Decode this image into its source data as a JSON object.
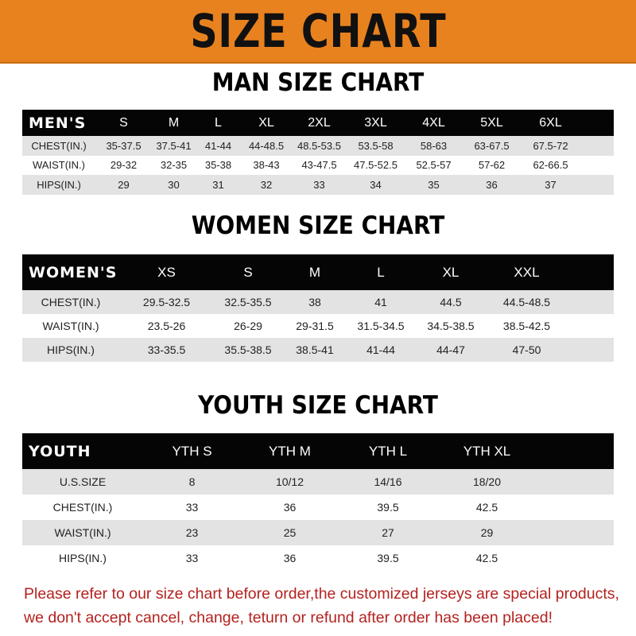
{
  "banner": {
    "title": "SIZE CHART",
    "color": "#e8821f"
  },
  "men": {
    "title": "MAN SIZE CHART",
    "header": [
      "MEN'S",
      "S",
      "M",
      "L",
      "XL",
      "2XL",
      "3XL",
      "4XL",
      "5XL",
      "6XL",
      ""
    ],
    "rows": [
      [
        "CHEST(IN.)",
        "35-37.5",
        "37.5-41",
        "41-44",
        "44-48.5",
        "48.5-53.5",
        "53.5-58",
        "58-63",
        "63-67.5",
        "67.5-72",
        ""
      ],
      [
        "WAIST(IN.)",
        "29-32",
        "32-35",
        "35-38",
        "38-43",
        "43-47.5",
        "47.5-52.5",
        "52.5-57",
        "57-62",
        "62-66.5",
        ""
      ],
      [
        "HIPS(IN.)",
        "29",
        "30",
        "31",
        "32",
        "33",
        "34",
        "35",
        "36",
        "37",
        ""
      ]
    ]
  },
  "women": {
    "title": "WOMEN SIZE CHART",
    "header": [
      "WOMEN'S",
      "XS",
      "S",
      "M",
      "L",
      "XL",
      "XXL",
      ""
    ],
    "rows": [
      [
        "CHEST(IN.)",
        "29.5-32.5",
        "32.5-35.5",
        "38",
        "41",
        "44.5",
        "44.5-48.5",
        ""
      ],
      [
        "WAIST(IN.)",
        "23.5-26",
        "26-29",
        "29-31.5",
        "31.5-34.5",
        "34.5-38.5",
        "38.5-42.5",
        ""
      ],
      [
        "HIPS(IN.)",
        "33-35.5",
        "35.5-38.5",
        "38.5-41",
        "41-44",
        "44-47",
        "47-50",
        ""
      ]
    ]
  },
  "youth": {
    "title": "YOUTH SIZE CHART",
    "header": [
      "YOUTH",
      "YTH S",
      "YTH M",
      "YTH L",
      "YTH XL",
      ""
    ],
    "rows": [
      [
        "U.S.SIZE",
        "8",
        "10/12",
        "14/16",
        "18/20",
        ""
      ],
      [
        "CHEST(IN.)",
        "33",
        "36",
        "39.5",
        "42.5",
        ""
      ],
      [
        "WAIST(IN.)",
        "23",
        "25",
        "27",
        "29",
        ""
      ],
      [
        "HIPS(IN.)",
        "33",
        "36",
        "39.5",
        "42.5",
        ""
      ]
    ]
  },
  "note": {
    "line1": "Please refer to our size chart before order,the customized jerseys are special products,",
    "line2": "we don't accept cancel, change, teturn or refund after order has been placed!",
    "color": "#b3221f"
  }
}
